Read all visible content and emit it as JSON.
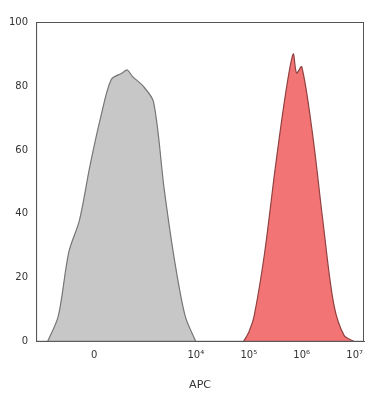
{
  "chart_data": {
    "type": "area",
    "x_label": "APC",
    "xlim": [
      -1500,
      15000000
    ],
    "xticks": [
      0,
      {
        "value": 10000,
        "label": "10⁴"
      },
      {
        "value": 100000,
        "label": "10⁵"
      },
      {
        "value": 1000000,
        "label": "10⁶"
      },
      {
        "value": 10000000,
        "label": "10⁷"
      }
    ],
    "ylim": [
      0,
      100
    ],
    "yticks": [
      0,
      20,
      40,
      60,
      80,
      100
    ],
    "grid": false,
    "series": [
      {
        "color": "#c4c4c4",
        "x": [
          -900,
          -550,
          -325,
          -166,
          -45,
          67,
          195,
          364,
          480,
          610,
          990,
          1580,
          2510,
          4000,
          6300,
          10000
        ],
        "values": [
          0,
          8,
          28,
          38,
          55,
          70,
          82,
          84,
          85,
          83,
          80,
          75,
          48,
          25,
          8,
          0
        ]
      },
      {
        "color": "#f26d6d",
        "x": [
          79000,
          100000,
          126000,
          200000,
          320000,
          500000,
          690000,
          800000,
          1000000,
          1600000,
          2500000,
          4000000,
          6300000,
          10000000
        ],
        "values": [
          0,
          3,
          8,
          28,
          55,
          78,
          90,
          84,
          86,
          65,
          38,
          12,
          2,
          0
        ]
      }
    ]
  }
}
